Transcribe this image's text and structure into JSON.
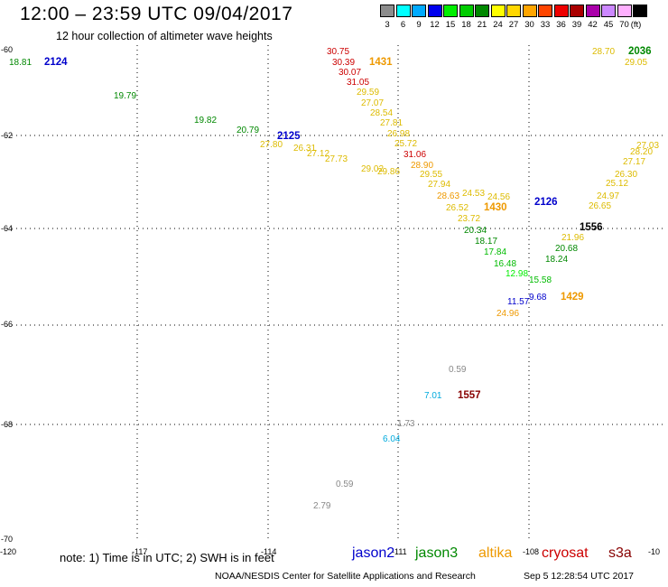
{
  "title": "12:00 – 23:59 UTC 09/04/2017",
  "subtitle": "12 hour collection of altimeter wave heights",
  "legend": {
    "unit": "(ft)",
    "bins": [
      {
        "color": "#8c8c8c",
        "label": "3"
      },
      {
        "color": "#00ffff",
        "label": "6"
      },
      {
        "color": "#00aaff",
        "label": "9"
      },
      {
        "color": "#0000ee",
        "label": "12"
      },
      {
        "color": "#00ee00",
        "label": "15"
      },
      {
        "color": "#00cc00",
        "label": "18"
      },
      {
        "color": "#008800",
        "label": "21"
      },
      {
        "color": "#ffff00",
        "label": "24"
      },
      {
        "color": "#ffd700",
        "label": "27"
      },
      {
        "color": "#ffa500",
        "label": "30"
      },
      {
        "color": "#ff4500",
        "label": "33"
      },
      {
        "color": "#ee0000",
        "label": "36"
      },
      {
        "color": "#aa0000",
        "label": "39"
      },
      {
        "color": "#aa00aa",
        "label": "42"
      },
      {
        "color": "#cc88ff",
        "label": "45"
      },
      {
        "color": "#ffb0ff",
        "label": "70"
      },
      {
        "color": "#000000",
        "label": ""
      }
    ]
  },
  "axes": {
    "lon_labels": [
      "-120",
      "-117",
      "-114",
      "-111",
      "-108",
      "-10"
    ],
    "lat_labels": [
      "-60",
      "-62",
      "-64",
      "-66",
      "-68",
      "-70"
    ]
  },
  "passes": [
    {
      "id": "2124",
      "sat": "jason2",
      "color": "#0000cc"
    },
    {
      "id": "2125",
      "sat": "jason2",
      "color": "#0000cc"
    },
    {
      "id": "2126",
      "sat": "jason2",
      "color": "#0000cc"
    },
    {
      "id": "1431",
      "sat": "altika",
      "color": "#ee9900"
    },
    {
      "id": "1430",
      "sat": "altika",
      "color": "#ee9900"
    },
    {
      "id": "1429",
      "sat": "altika",
      "color": "#ee9900"
    },
    {
      "id": "1557",
      "sat": "cryosat",
      "color": "#880000"
    },
    {
      "id": "1556",
      "sat": "cryosat",
      "color": "#000000"
    },
    {
      "id": "2036",
      "sat": "jason3",
      "color": "#008800"
    }
  ],
  "observations": [
    {
      "v": "18.81",
      "c": "#008800"
    },
    {
      "v": "19.79",
      "c": "#008800"
    },
    {
      "v": "19.82",
      "c": "#008800"
    },
    {
      "v": "20.79",
      "c": "#008800"
    },
    {
      "v": "30.75",
      "c": "#cc0000"
    },
    {
      "v": "30.39",
      "c": "#cc0000"
    },
    {
      "v": "30.07",
      "c": "#cc0000"
    },
    {
      "v": "31.05",
      "c": "#cc0000"
    },
    {
      "v": "29.59",
      "c": "#ddbb00"
    },
    {
      "v": "27.07",
      "c": "#ddbb00"
    },
    {
      "v": "28.54",
      "c": "#ddbb00"
    },
    {
      "v": "27.81",
      "c": "#ddbb00"
    },
    {
      "v": "26.98",
      "c": "#ddbb00"
    },
    {
      "v": "25.72",
      "c": "#ddbb00"
    },
    {
      "v": "31.06",
      "c": "#cc0000"
    },
    {
      "v": "28.90",
      "c": "#ee9900"
    },
    {
      "v": "29.55",
      "c": "#ddbb00"
    },
    {
      "v": "27.94",
      "c": "#ddbb00"
    },
    {
      "v": "28.63",
      "c": "#ee9900"
    },
    {
      "v": "26.52",
      "c": "#ddbb00"
    },
    {
      "v": "23.72",
      "c": "#ddbb00"
    },
    {
      "v": "20.34",
      "c": "#008800"
    },
    {
      "v": "18.17",
      "c": "#008800"
    },
    {
      "v": "17.84",
      "c": "#00bb00"
    },
    {
      "v": "16.48",
      "c": "#00bb00"
    },
    {
      "v": "12.98",
      "c": "#00ee00"
    },
    {
      "v": "11.57",
      "c": "#0000cc"
    },
    {
      "v": "24.96",
      "c": "#ee9900"
    },
    {
      "v": "9.68",
      "c": "#0000cc"
    },
    {
      "v": "15.58",
      "c": "#00bb00"
    },
    {
      "v": "18.24",
      "c": "#008800"
    },
    {
      "v": "20.68",
      "c": "#008800"
    },
    {
      "v": "21.96",
      "c": "#ddbb00"
    },
    {
      "v": "26.65",
      "c": "#ddbb00"
    },
    {
      "v": "24.97",
      "c": "#ddbb00"
    },
    {
      "v": "25.12",
      "c": "#ddbb00"
    },
    {
      "v": "26.30",
      "c": "#ddbb00"
    },
    {
      "v": "27.17",
      "c": "#ddbb00"
    },
    {
      "v": "28.20",
      "c": "#ddbb00"
    },
    {
      "v": "27.03",
      "c": "#ddbb00"
    },
    {
      "v": "28.70",
      "c": "#ddbb00"
    },
    {
      "v": "29.05",
      "c": "#ddbb00"
    },
    {
      "v": "24.53",
      "c": "#ddbb00"
    },
    {
      "v": "24.56",
      "c": "#ddbb00"
    },
    {
      "v": "27.12",
      "c": "#ddbb00"
    },
    {
      "v": "27.73",
      "c": "#ddbb00"
    },
    {
      "v": "26.31",
      "c": "#ddbb00"
    },
    {
      "v": "27.80",
      "c": "#ddbb00"
    },
    {
      "v": "29.02",
      "c": "#ddbb00"
    },
    {
      "v": "29.86",
      "c": "#ddbb00"
    },
    {
      "v": "0.59",
      "c": "#888888"
    },
    {
      "v": "7.01",
      "c": "#00aadd"
    },
    {
      "v": "1.73",
      "c": "#888888"
    },
    {
      "v": "6.04",
      "c": "#00aadd"
    },
    {
      "v": "0.59",
      "c": "#888888"
    },
    {
      "v": "2.79",
      "c": "#888888"
    }
  ],
  "note": "note: 1) Time is in UTC; 2) SWH is in feet",
  "satellites": [
    {
      "name": "jason2",
      "color": "#0000cc"
    },
    {
      "name": "jason3",
      "color": "#008800"
    },
    {
      "name": "altika",
      "color": "#ee9900"
    },
    {
      "name": "cryosat",
      "color": "#cc0000"
    },
    {
      "name": "s3a",
      "color": "#880000"
    }
  ],
  "credit": "NOAA/NESDIS Center for Satellite Applications and Research",
  "timestamp": "Sep  5 12:28:54 UTC 2017"
}
